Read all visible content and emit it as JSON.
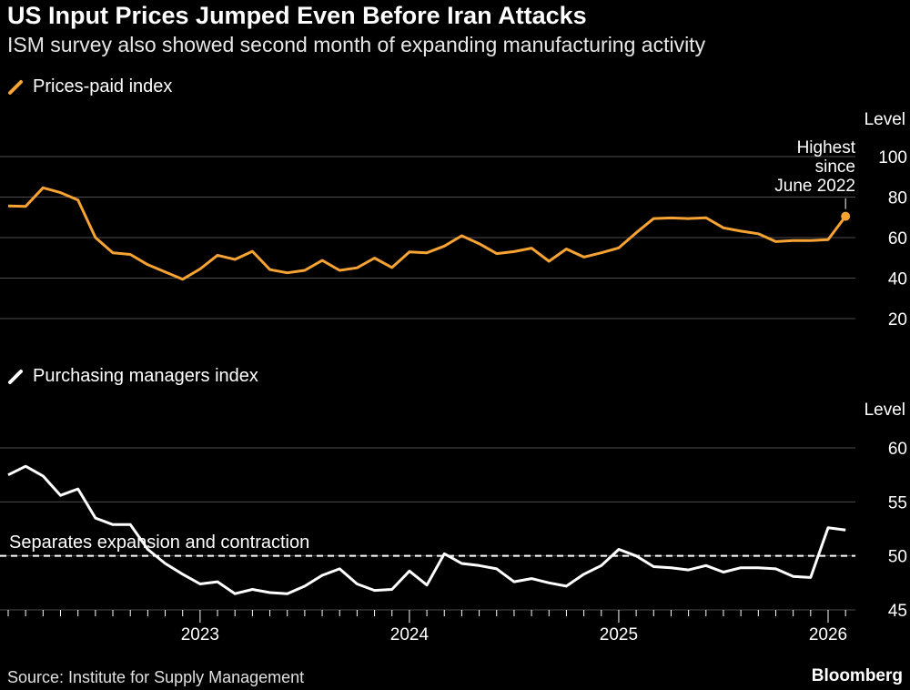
{
  "header": {
    "title": "US Input Prices Jumped Even Before Iran Attacks",
    "subtitle": "ISM survey also showed second month of expanding manufacturing activity"
  },
  "colors": {
    "prices": "#f7a334",
    "pmi": "#ffffff",
    "grid": "#4d4d4d",
    "background": "#000000"
  },
  "chart_data": [
    {
      "type": "line",
      "title": "Prices-paid index",
      "ylabel": "Level",
      "ylim": [
        20,
        100
      ],
      "yticks": [
        20,
        40,
        60,
        80,
        100
      ],
      "x_start": "2022-02",
      "series": [
        {
          "name": "Prices-paid index",
          "values": [
            75.6,
            75.4,
            84.6,
            82.2,
            78.5,
            60,
            52.5,
            51.7,
            46.6,
            43,
            39.4,
            44.5,
            51.3,
            49.2,
            53.2,
            44.2,
            42.6,
            43.8,
            48.7,
            43.8,
            45.1,
            49.9,
            45.2,
            52.9,
            52.5,
            55.8,
            60.9,
            57,
            52.1,
            53.1,
            54.8,
            48.3,
            54.4,
            50.4,
            52.5,
            54.9,
            62.4,
            69.4,
            69.7,
            69.4,
            69.8,
            64.8,
            63.2,
            61.9,
            58,
            58.5,
            58.5,
            59,
            70.5
          ]
        }
      ],
      "annotation": {
        "lines": [
          "Highest",
          "since",
          "June 2022"
        ],
        "point_index": 48
      }
    },
    {
      "type": "line",
      "title": "Purchasing managers index",
      "ylabel": "Level",
      "ylim": [
        45,
        60
      ],
      "yticks": [
        45,
        50,
        55,
        60
      ],
      "x_start": "2022-02",
      "xticks": [
        "2023",
        "2024",
        "2025",
        "2026"
      ],
      "series": [
        {
          "name": "Purchasing managers index",
          "values": [
            57.5,
            58.3,
            57.4,
            55.6,
            56.2,
            53.5,
            52.9,
            52.9,
            50.6,
            49.3,
            48.3,
            47.4,
            47.6,
            46.5,
            46.9,
            46.6,
            46.5,
            47.2,
            48.2,
            48.8,
            47.4,
            46.8,
            46.9,
            48.6,
            47.3,
            50.2,
            49.3,
            49.1,
            48.8,
            47.6,
            47.9,
            47.5,
            47.2,
            48.3,
            49.1,
            50.6,
            50.0,
            49.0,
            48.9,
            48.7,
            49.1,
            48.5,
            48.9,
            48.9,
            48.8,
            48.1,
            48.0,
            52.6,
            52.4
          ]
        },
        {
          "name": "Separates expansion and contraction",
          "constant": 50,
          "style": "dashed"
        }
      ],
      "reference_label": "Separates expansion and contraction"
    }
  ],
  "footer": {
    "source": "Source: Institute for Supply Management",
    "brand": "Bloomberg"
  }
}
